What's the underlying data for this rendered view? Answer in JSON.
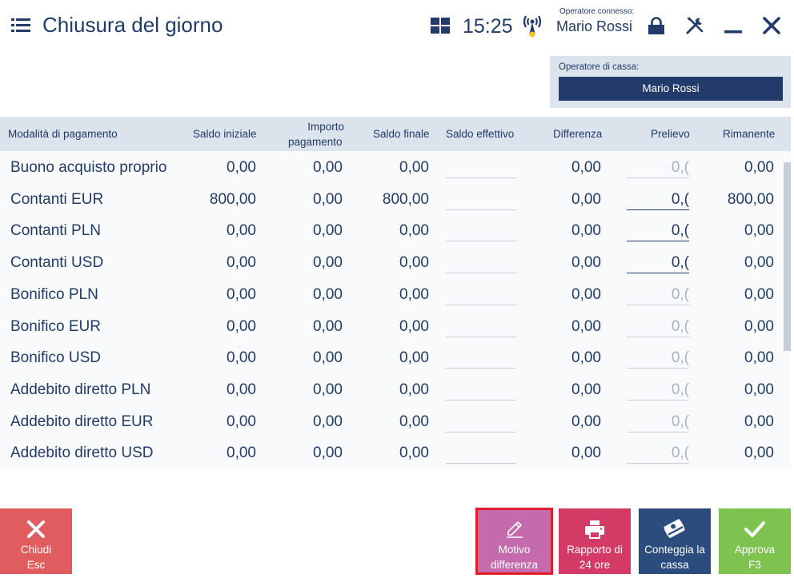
{
  "header": {
    "title": "Chiusura del giorno",
    "clock": "15:25",
    "operator_label": "Operatore connesso:",
    "operator_name": "Mario Rossi"
  },
  "cashier": {
    "label": "Operatore di cassa:",
    "name": "Mario Rossi"
  },
  "table": {
    "columns": {
      "method": "Modalità di pagamento",
      "saldo_iniziale": "Saldo iniziale",
      "importo_1": "Importo",
      "importo_2": "pagamento",
      "saldo_finale": "Saldo finale",
      "saldo_effettivo": "Saldo effettivo",
      "differenza": "Differenza",
      "prelievo": "Prelievo",
      "rimanente": "Rimanente"
    },
    "rows": [
      {
        "name": "Buono acquisto proprio",
        "saldo_iniziale": "0,00",
        "importo": "0,00",
        "saldo_finale": "0,00",
        "differenza": "0,00",
        "prelievo": "0,(",
        "prelievo_state": "inactive",
        "rimanente": "0,00"
      },
      {
        "name": "Contanti EUR",
        "saldo_iniziale": "800,00",
        "importo": "0,00",
        "saldo_finale": "800,00",
        "differenza": "0,00",
        "prelievo": "0,(",
        "prelievo_state": "active",
        "rimanente": "800,00"
      },
      {
        "name": "Contanti PLN",
        "saldo_iniziale": "0,00",
        "importo": "0,00",
        "saldo_finale": "0,00",
        "differenza": "0,00",
        "prelievo": "0,(",
        "prelievo_state": "active",
        "rimanente": "0,00"
      },
      {
        "name": "Contanti USD",
        "saldo_iniziale": "0,00",
        "importo": "0,00",
        "saldo_finale": "0,00",
        "differenza": "0,00",
        "prelievo": "0,(",
        "prelievo_state": "active",
        "rimanente": "0,00"
      },
      {
        "name": "Bonifico PLN",
        "saldo_iniziale": "0,00",
        "importo": "0,00",
        "saldo_finale": "0,00",
        "differenza": "0,00",
        "prelievo": "0,(",
        "prelievo_state": "inactive",
        "rimanente": "0,00"
      },
      {
        "name": "Bonifico EUR",
        "saldo_iniziale": "0,00",
        "importo": "0,00",
        "saldo_finale": "0,00",
        "differenza": "0,00",
        "prelievo": "0,(",
        "prelievo_state": "inactive",
        "rimanente": "0,00"
      },
      {
        "name": "Bonifico USD",
        "saldo_iniziale": "0,00",
        "importo": "0,00",
        "saldo_finale": "0,00",
        "differenza": "0,00",
        "prelievo": "0,(",
        "prelievo_state": "inactive",
        "rimanente": "0,00"
      },
      {
        "name": "Addebito diretto PLN",
        "saldo_iniziale": "0,00",
        "importo": "0,00",
        "saldo_finale": "0,00",
        "differenza": "0,00",
        "prelievo": "0,(",
        "prelievo_state": "inactive",
        "rimanente": "0,00"
      },
      {
        "name": "Addebito diretto EUR",
        "saldo_iniziale": "0,00",
        "importo": "0,00",
        "saldo_finale": "0,00",
        "differenza": "0,00",
        "prelievo": "0,(",
        "prelievo_state": "inactive",
        "rimanente": "0,00"
      },
      {
        "name": "Addebito diretto USD",
        "saldo_iniziale": "0,00",
        "importo": "0,00",
        "saldo_finale": "0,00",
        "differenza": "0,00",
        "prelievo": "0,(",
        "prelievo_state": "inactive",
        "rimanente": "0,00"
      }
    ]
  },
  "buttons": {
    "chiudi": {
      "line1": "Chiudi",
      "line2": "Esc"
    },
    "motivo": {
      "line1": "Motivo",
      "line2": "differenza"
    },
    "rapporto": {
      "line1": "Rapporto di",
      "line2": "24 ore"
    },
    "conteggia": {
      "line1": "Conteggia la",
      "line2": "cassa"
    },
    "approva": {
      "line1": "Approva",
      "line2": "F3"
    }
  },
  "colors": {
    "primary": "#223b6a",
    "header_bg": "#dbe3ec",
    "chiudi": "#e05c5f",
    "motivo": "#c56aac",
    "rapporto": "#d33b66",
    "conteggia": "#2c4c7e",
    "approva": "#7ec24f",
    "highlight": "#e11d2a"
  },
  "icons": [
    "menu-icon",
    "grid-icon",
    "signal-icon",
    "lock-icon",
    "tools-icon",
    "minimize-icon",
    "close-icon",
    "x-icon",
    "pencil-icon",
    "printer-icon",
    "cash-icon",
    "checkmark-icon"
  ]
}
